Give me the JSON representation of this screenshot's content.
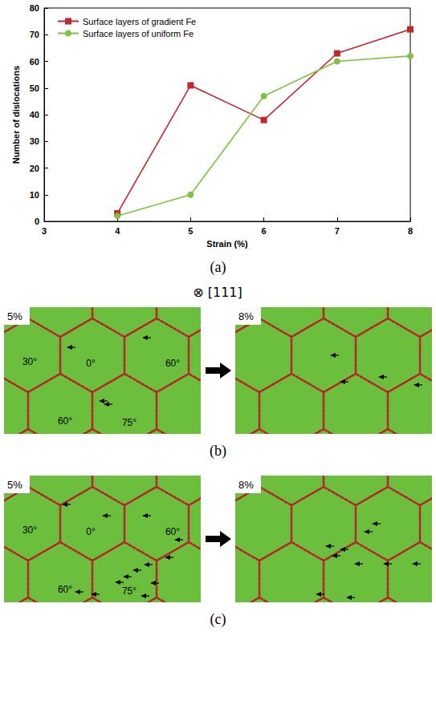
{
  "chart_data": {
    "type": "line",
    "x": [
      4,
      5,
      6,
      7,
      8
    ],
    "xlim": [
      3,
      8
    ],
    "xticks": [
      3,
      4,
      5,
      6,
      7,
      8
    ],
    "ylim": [
      0,
      80
    ],
    "yticks": [
      0,
      10,
      20,
      30,
      40,
      50,
      60,
      70,
      80
    ],
    "x_label": "Strain (%)",
    "y_label": "Number of dislocations",
    "series": [
      {
        "name": "Surface layers of gradient Fe",
        "color": "#c0282d",
        "marker": "square",
        "values": [
          3,
          51,
          38,
          63,
          72
        ]
      },
      {
        "name": "Surface layers of uniform Fe",
        "color": "#7dc242",
        "marker": "circle",
        "values": [
          2,
          10,
          47,
          60,
          62
        ]
      }
    ],
    "grid": false,
    "legend": "upper left"
  },
  "figure": {
    "chart_label": "(a)",
    "view_axis": "⊗ [111]",
    "snapshot_rows": [
      {
        "label": "(b)",
        "frames": [
          {
            "strain": "5%",
            "grain_labels": [
              "30°",
              "0°",
              "60°",
              "60°",
              "75°"
            ]
          },
          {
            "strain": "8%",
            "grain_labels": []
          }
        ]
      },
      {
        "label": "(c)",
        "frames": [
          {
            "strain": "5%",
            "grain_labels": [
              "30°",
              "0°",
              "60°",
              "60°",
              "75°"
            ]
          },
          {
            "strain": "8%",
            "grain_labels": []
          }
        ]
      }
    ]
  }
}
